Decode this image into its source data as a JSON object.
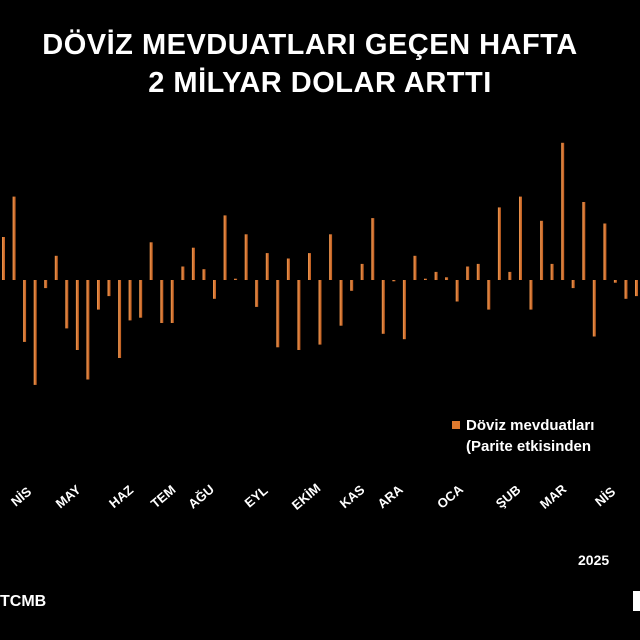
{
  "chart_data": {
    "type": "bar",
    "title": [
      "DÖVİZ MEVDUATLARI GEÇEN HAFTA",
      "2 MİLYAR DOLAR ARTTI"
    ],
    "legend": {
      "label": "Döviz mevduatları",
      "sublabel": "(Parite etkisinden",
      "color": "#E07A2E",
      "position": "right"
    },
    "month_labels": [
      "NİS",
      "MAY",
      "HAZ",
      "TEM",
      "AĞU",
      "EYL",
      "EKİM",
      "KAS",
      "ARA",
      "OCA",
      "ŞUB",
      "MAR",
      "NİS"
    ],
    "year_label": "2025",
    "source": "TCMB",
    "ylim": [
      -4.2,
      5.2
    ],
    "values": [
      1.6,
      3.1,
      -2.3,
      -3.9,
      -0.3,
      0.9,
      -1.8,
      -2.6,
      -3.7,
      -1.1,
      -0.6,
      -2.9,
      -1.5,
      -1.4,
      1.4,
      -1.6,
      -1.6,
      0.5,
      1.2,
      0.4,
      -0.7,
      2.4,
      0.05,
      1.7,
      -1.0,
      1.0,
      -2.5,
      0.8,
      -2.6,
      1.0,
      -2.4,
      1.7,
      -1.7,
      -0.4,
      0.6,
      2.3,
      -2.0,
      -0.05,
      -2.2,
      0.9,
      0.05,
      0.3,
      0.1,
      -0.8,
      0.5,
      0.6,
      -1.1,
      2.7,
      0.3,
      3.1,
      -1.1,
      2.2,
      0.6,
      5.1,
      -0.3,
      2.9,
      -2.1,
      2.1,
      -0.1,
      -0.7,
      -0.6
    ]
  }
}
